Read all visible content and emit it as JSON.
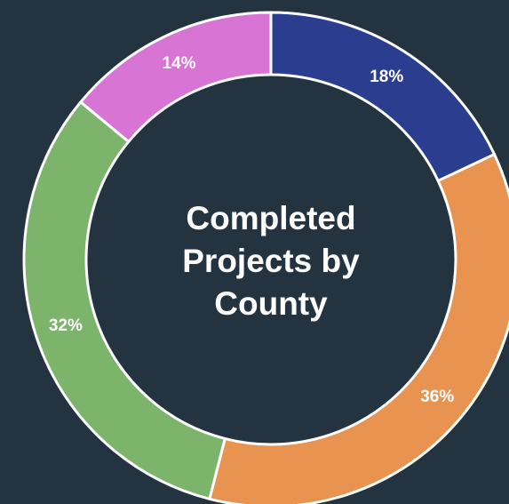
{
  "chart_data": {
    "type": "donut",
    "title": "Completed Projects by County",
    "values": [
      18,
      36,
      32,
      14
    ],
    "value_labels": [
      "18%",
      "36%",
      "32%",
      "14%"
    ],
    "colors": [
      "#2b3d8f",
      "#e89350",
      "#7db46c",
      "#d874d4"
    ]
  }
}
